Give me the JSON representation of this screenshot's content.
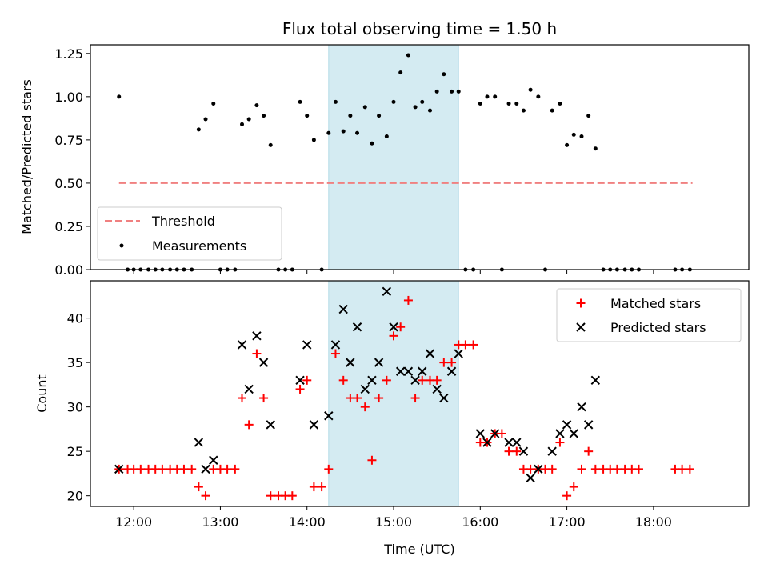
{
  "chart_data": [
    {
      "type": "scatter",
      "panel": "top",
      "title": "Flux total observing time = 1.50 h",
      "xlabel": "",
      "ylabel": "Matched/Predicted stars",
      "ylim": [
        0,
        1.3
      ],
      "yticks": [
        "0.00",
        "0.25",
        "0.50",
        "0.75",
        "1.00",
        "1.25"
      ],
      "threshold": 0.5,
      "threshold_range": [
        11.83,
        18.45
      ],
      "highlight_span": [
        14.25,
        15.75
      ],
      "colors": {
        "threshold": "#f08080",
        "measurements": "#000000",
        "span": "#add8e6"
      },
      "legend": {
        "threshold": "Threshold",
        "measurements": "Measurements"
      },
      "series": [
        {
          "name": "Measurements",
          "points": [
            [
              11.83,
              1.0
            ],
            [
              11.93,
              0
            ],
            [
              12.0,
              0
            ],
            [
              12.08,
              0
            ],
            [
              12.17,
              0
            ],
            [
              12.25,
              0
            ],
            [
              12.33,
              0
            ],
            [
              12.42,
              0
            ],
            [
              12.5,
              0
            ],
            [
              12.58,
              0
            ],
            [
              12.67,
              0
            ],
            [
              12.75,
              0.81
            ],
            [
              12.83,
              0.87
            ],
            [
              12.92,
              0.96
            ],
            [
              13.0,
              0
            ],
            [
              13.08,
              0
            ],
            [
              13.17,
              0
            ],
            [
              13.25,
              0.84
            ],
            [
              13.33,
              0.87
            ],
            [
              13.42,
              0.95
            ],
            [
              13.5,
              0.89
            ],
            [
              13.58,
              0.72
            ],
            [
              13.67,
              0
            ],
            [
              13.75,
              0
            ],
            [
              13.83,
              0
            ],
            [
              13.92,
              0.97
            ],
            [
              14.0,
              0.89
            ],
            [
              14.08,
              0.75
            ],
            [
              14.17,
              0
            ],
            [
              14.25,
              0.79
            ],
            [
              14.33,
              0.97
            ],
            [
              14.42,
              0.8
            ],
            [
              14.5,
              0.89
            ],
            [
              14.58,
              0.79
            ],
            [
              14.67,
              0.94
            ],
            [
              14.75,
              0.73
            ],
            [
              14.83,
              0.89
            ],
            [
              14.92,
              0.77
            ],
            [
              15.0,
              0.97
            ],
            [
              15.08,
              1.14
            ],
            [
              15.17,
              1.24
            ],
            [
              15.25,
              0.94
            ],
            [
              15.33,
              0.97
            ],
            [
              15.42,
              0.92
            ],
            [
              15.5,
              1.03
            ],
            [
              15.58,
              1.13
            ],
            [
              15.67,
              1.03
            ],
            [
              15.75,
              1.03
            ],
            [
              15.83,
              0
            ],
            [
              15.92,
              0
            ],
            [
              16.0,
              0.96
            ],
            [
              16.08,
              1.0
            ],
            [
              16.17,
              1.0
            ],
            [
              16.25,
              0
            ],
            [
              16.33,
              0.96
            ],
            [
              16.42,
              0.96
            ],
            [
              16.5,
              0.92
            ],
            [
              16.58,
              1.04
            ],
            [
              16.67,
              1.0
            ],
            [
              16.75,
              0
            ],
            [
              16.83,
              0.92
            ],
            [
              16.92,
              0.96
            ],
            [
              17.0,
              0.72
            ],
            [
              17.08,
              0.78
            ],
            [
              17.17,
              0.77
            ],
            [
              17.25,
              0.89
            ],
            [
              17.33,
              0.7
            ],
            [
              17.42,
              0
            ],
            [
              17.5,
              0
            ],
            [
              17.58,
              0
            ],
            [
              17.67,
              0
            ],
            [
              17.75,
              0
            ],
            [
              17.83,
              0
            ],
            [
              18.25,
              0
            ],
            [
              18.33,
              0
            ],
            [
              18.42,
              0
            ]
          ]
        }
      ]
    },
    {
      "type": "scatter",
      "panel": "bottom",
      "xlabel": "Time (UTC)",
      "ylabel": "Count",
      "xlim": [
        11.5,
        19.1
      ],
      "ylim": [
        18.8,
        44.2
      ],
      "yticks": [
        20,
        25,
        30,
        35,
        40
      ],
      "xticks": [
        "12:00",
        "13:00",
        "14:00",
        "15:00",
        "16:00",
        "17:00",
        "18:00"
      ],
      "xtick_values": [
        12,
        13,
        14,
        15,
        16,
        17,
        18
      ],
      "highlight_span": [
        14.25,
        15.75
      ],
      "colors": {
        "matched": "#ff0000",
        "predicted": "#000000",
        "span": "#add8e6"
      },
      "legend": {
        "matched": "Matched stars",
        "predicted": "Predicted stars"
      },
      "series": [
        {
          "name": "Matched stars",
          "points": [
            [
              11.83,
              23
            ],
            [
              11.93,
              23
            ],
            [
              12.0,
              23
            ],
            [
              12.08,
              23
            ],
            [
              12.17,
              23
            ],
            [
              12.25,
              23
            ],
            [
              12.33,
              23
            ],
            [
              12.42,
              23
            ],
            [
              12.5,
              23
            ],
            [
              12.58,
              23
            ],
            [
              12.67,
              23
            ],
            [
              12.75,
              21
            ],
            [
              12.83,
              20
            ],
            [
              12.92,
              23
            ],
            [
              13.0,
              23
            ],
            [
              13.08,
              23
            ],
            [
              13.17,
              23
            ],
            [
              13.25,
              31
            ],
            [
              13.33,
              28
            ],
            [
              13.42,
              36
            ],
            [
              13.5,
              31
            ],
            [
              13.58,
              20
            ],
            [
              13.67,
              20
            ],
            [
              13.75,
              20
            ],
            [
              13.83,
              20
            ],
            [
              13.92,
              32
            ],
            [
              14.0,
              33
            ],
            [
              14.08,
              21
            ],
            [
              14.17,
              21
            ],
            [
              14.25,
              23
            ],
            [
              14.33,
              36
            ],
            [
              14.42,
              33
            ],
            [
              14.5,
              31
            ],
            [
              14.58,
              31
            ],
            [
              14.67,
              30
            ],
            [
              14.75,
              24
            ],
            [
              14.83,
              31
            ],
            [
              14.92,
              33
            ],
            [
              15.0,
              38
            ],
            [
              15.08,
              39
            ],
            [
              15.17,
              42
            ],
            [
              15.25,
              31
            ],
            [
              15.33,
              33
            ],
            [
              15.42,
              33
            ],
            [
              15.5,
              33
            ],
            [
              15.58,
              35
            ],
            [
              15.67,
              35
            ],
            [
              15.75,
              37
            ],
            [
              15.83,
              37
            ],
            [
              15.92,
              37
            ],
            [
              16.0,
              26
            ],
            [
              16.08,
              26
            ],
            [
              16.17,
              27
            ],
            [
              16.25,
              27
            ],
            [
              16.33,
              25
            ],
            [
              16.42,
              25
            ],
            [
              16.5,
              23
            ],
            [
              16.58,
              23
            ],
            [
              16.67,
              23
            ],
            [
              16.75,
              23
            ],
            [
              16.83,
              23
            ],
            [
              16.92,
              26
            ],
            [
              17.0,
              20
            ],
            [
              17.08,
              21
            ],
            [
              17.17,
              23
            ],
            [
              17.25,
              25
            ],
            [
              17.33,
              23
            ],
            [
              17.42,
              23
            ],
            [
              17.5,
              23
            ],
            [
              17.58,
              23
            ],
            [
              17.67,
              23
            ],
            [
              17.75,
              23
            ],
            [
              17.83,
              23
            ],
            [
              18.25,
              23
            ],
            [
              18.33,
              23
            ],
            [
              18.42,
              23
            ]
          ]
        },
        {
          "name": "Predicted stars",
          "points": [
            [
              11.83,
              23
            ],
            [
              12.75,
              26
            ],
            [
              12.83,
              23
            ],
            [
              12.92,
              24
            ],
            [
              13.25,
              37
            ],
            [
              13.33,
              32
            ],
            [
              13.42,
              38
            ],
            [
              13.5,
              35
            ],
            [
              13.58,
              28
            ],
            [
              13.92,
              33
            ],
            [
              14.0,
              37
            ],
            [
              14.08,
              28
            ],
            [
              14.25,
              29
            ],
            [
              14.33,
              37
            ],
            [
              14.42,
              41
            ],
            [
              14.5,
              35
            ],
            [
              14.58,
              39
            ],
            [
              14.67,
              32
            ],
            [
              14.75,
              33
            ],
            [
              14.83,
              35
            ],
            [
              14.92,
              43
            ],
            [
              15.0,
              39
            ],
            [
              15.08,
              34
            ],
            [
              15.17,
              34
            ],
            [
              15.25,
              33
            ],
            [
              15.33,
              34
            ],
            [
              15.42,
              36
            ],
            [
              15.5,
              32
            ],
            [
              15.58,
              31
            ],
            [
              15.67,
              34
            ],
            [
              15.75,
              36
            ],
            [
              16.0,
              27
            ],
            [
              16.08,
              26
            ],
            [
              16.17,
              27
            ],
            [
              16.33,
              26
            ],
            [
              16.42,
              26
            ],
            [
              16.5,
              25
            ],
            [
              16.58,
              22
            ],
            [
              16.67,
              23
            ],
            [
              16.83,
              25
            ],
            [
              16.92,
              27
            ],
            [
              17.0,
              28
            ],
            [
              17.08,
              27
            ],
            [
              17.17,
              30
            ],
            [
              17.25,
              28
            ],
            [
              17.33,
              33
            ]
          ]
        }
      ]
    }
  ]
}
